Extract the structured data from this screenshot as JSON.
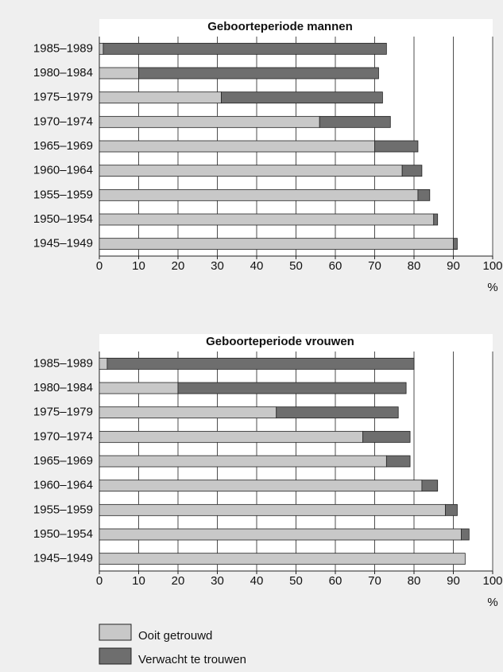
{
  "chart_data": [
    {
      "type": "bar",
      "orientation": "horizontal",
      "stacked": true,
      "title": "Geboorteperiode mannen",
      "x_label": "%",
      "categories": [
        "1985–1989",
        "1980–1984",
        "1975–1979",
        "1970–1974",
        "1965–1969",
        "1960–1964",
        "1955–1959",
        "1950–1954",
        "1945–1949"
      ],
      "series": [
        {
          "name": "Ooit getrouwd",
          "color": "#c8c8c8",
          "values": [
            1,
            10,
            31,
            56,
            70,
            77,
            81,
            85,
            90
          ]
        },
        {
          "name": "Verwacht te trouwen",
          "color": "#6e6e6e",
          "values": [
            72,
            61,
            41,
            18,
            11,
            5,
            3,
            1,
            1
          ]
        }
      ],
      "xlim": [
        0,
        100
      ],
      "xticks": [
        0,
        10,
        20,
        30,
        40,
        50,
        60,
        70,
        80,
        90,
        100
      ],
      "grid": true
    },
    {
      "type": "bar",
      "orientation": "horizontal",
      "stacked": true,
      "title": "Geboorteperiode vrouwen",
      "x_label": "%",
      "categories": [
        "1985–1989",
        "1980–1984",
        "1975–1979",
        "1970–1974",
        "1965–1969",
        "1960–1964",
        "1955–1959",
        "1950–1954",
        "1945–1949"
      ],
      "series": [
        {
          "color": "#c8c8c8",
          "values": [
            2,
            20,
            45,
            67,
            73,
            82,
            88,
            92,
            93
          ]
        },
        {
          "color": "#6e6e6e",
          "values": [
            78,
            58,
            31,
            12,
            6,
            4,
            3,
            2,
            0
          ]
        }
      ],
      "xlim": [
        0,
        100
      ],
      "xticks": [
        0,
        10,
        20,
        30,
        40,
        50,
        60,
        70,
        80,
        90,
        100
      ],
      "grid": true
    }
  ]
}
